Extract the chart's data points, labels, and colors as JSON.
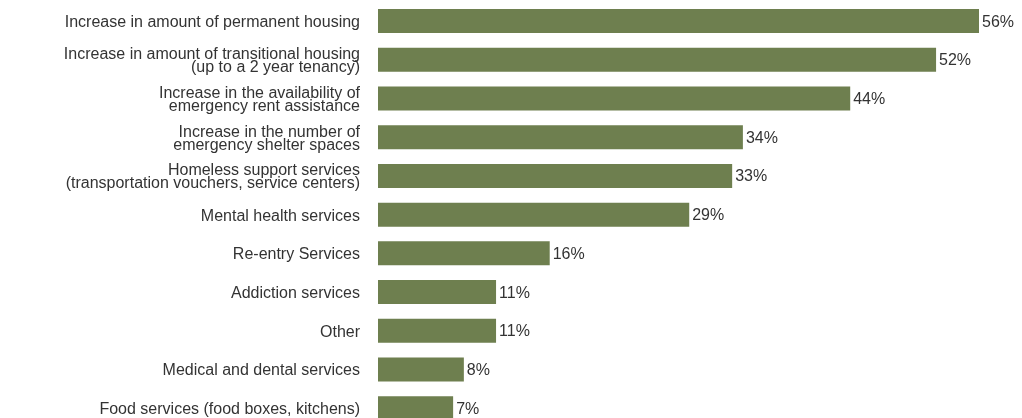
{
  "chart_data": {
    "type": "bar",
    "orientation": "horizontal",
    "categories": [
      "Increase in amount of permanent housing",
      "Increase in amount of transitional housing\n(up to a 2 year tenancy)",
      "Increase in the availability of\nemergency rent assistance",
      "Increase in the number of\nemergency shelter spaces",
      "Homeless support services\n(transportation vouchers, service centers)",
      "Mental health services",
      "Re-entry Services",
      "Addiction services",
      "Other",
      "Medical and dental services",
      "Food services (food boxes, kitchens)"
    ],
    "values": [
      56,
      52,
      44,
      34,
      33,
      29,
      16,
      11,
      11,
      8,
      7
    ],
    "value_labels": [
      "56%",
      "52%",
      "44%",
      "34%",
      "33%",
      "29%",
      "16%",
      "11%",
      "11%",
      "8%",
      "7%"
    ],
    "color": "#6e7f4f"
  }
}
